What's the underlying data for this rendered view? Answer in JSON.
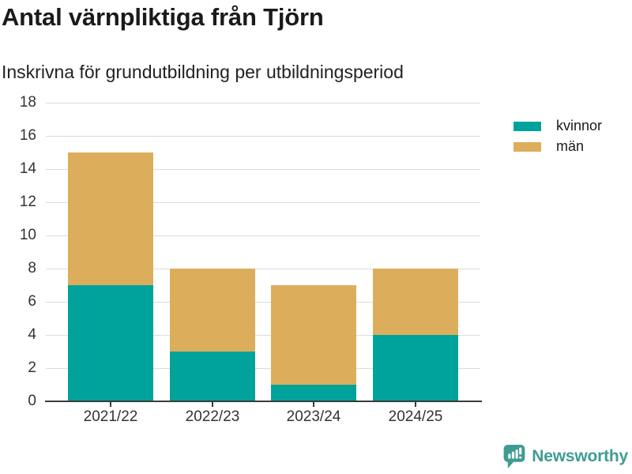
{
  "chart_data": {
    "type": "bar",
    "stacked": true,
    "title": "Antal värnpliktiga från Tjörn",
    "subtitle": "Inskrivna för grundutbildning per utbildningsperiod",
    "categories": [
      "2021/22",
      "2022/23",
      "2023/24",
      "2024/25"
    ],
    "series": [
      {
        "name": "kvinnor",
        "color": "#00a39b",
        "values": [
          7,
          3,
          1,
          4
        ]
      },
      {
        "name": "män",
        "color": "#dcae5c",
        "values": [
          8,
          5,
          6,
          4
        ]
      }
    ],
    "totals": [
      15,
      8,
      7,
      8
    ],
    "xlabel": "",
    "ylabel": "",
    "ylim": [
      0,
      18
    ],
    "yticks": [
      0,
      2,
      4,
      6,
      8,
      10,
      12,
      14,
      16,
      18
    ],
    "grid": true,
    "grid_color": "#dcdcdc",
    "axis_color": "#3b3b3b",
    "tick_label_color": "#333333",
    "legend_position": "right"
  },
  "footer": {
    "brand": "Newsworthy",
    "brand_color": "#3f9c92",
    "logo_icon": "bar-chart-speech-bubble-icon"
  }
}
